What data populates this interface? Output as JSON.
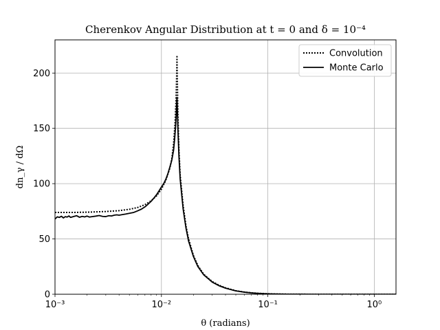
{
  "chart_data": {
    "type": "line",
    "title": "Cherenkov Angular Distribution at t = 0 and δ = 10⁻⁴",
    "xlabel": "θ (radians)",
    "ylabel": "dn_γ / dΩ",
    "xscale": "log",
    "xlim": [
      0.001,
      1.6
    ],
    "ylim": [
      0,
      230
    ],
    "xticks": [
      {
        "value": 0.001,
        "label": "10⁻³"
      },
      {
        "value": 0.01,
        "label": "10⁻²"
      },
      {
        "value": 0.1,
        "label": "10⁻¹"
      },
      {
        "value": 1,
        "label": "10⁰"
      }
    ],
    "yticks": [
      0,
      50,
      100,
      150,
      200
    ],
    "grid": true,
    "legend_position": "top-right",
    "series": [
      {
        "name": "Convolution",
        "style": "dotted",
        "color": "#000000",
        "x": [
          0.001,
          0.0015,
          0.002,
          0.003,
          0.004,
          0.005,
          0.006,
          0.007,
          0.008,
          0.009,
          0.01,
          0.011,
          0.012,
          0.0125,
          0.013,
          0.0134,
          0.0137,
          0.0139,
          0.014,
          0.0141,
          0.0143,
          0.0146,
          0.015,
          0.016,
          0.017,
          0.018,
          0.02,
          0.022,
          0.025,
          0.03,
          0.035,
          0.04,
          0.05,
          0.06,
          0.07,
          0.08,
          0.1,
          0.12,
          0.15,
          0.2,
          0.3,
          0.5,
          0.7,
          1.0,
          1.6
        ],
        "y": [
          74,
          74,
          74.2,
          74.8,
          75.6,
          76.8,
          78.5,
          81,
          84.5,
          89,
          95,
          103,
          114,
          122,
          136,
          154,
          175,
          198,
          216,
          196,
          162,
          132,
          108,
          80,
          62,
          50,
          35,
          26,
          18,
          11.5,
          8,
          5.8,
          3.2,
          2,
          1.3,
          0.9,
          0.45,
          0.25,
          0.12,
          0.05,
          0.01,
          0,
          0,
          0,
          0
        ]
      },
      {
        "name": "Monte Carlo",
        "style": "solid",
        "color": "#000000",
        "x": [
          0.001,
          0.00105,
          0.0011,
          0.00115,
          0.0012,
          0.00125,
          0.0013,
          0.00135,
          0.0014,
          0.0015,
          0.0016,
          0.0017,
          0.0018,
          0.0019,
          0.002,
          0.0021,
          0.0022,
          0.0024,
          0.0026,
          0.0028,
          0.003,
          0.0032,
          0.0034,
          0.0036,
          0.0038,
          0.004,
          0.0043,
          0.0046,
          0.005,
          0.0055,
          0.006,
          0.0065,
          0.007,
          0.0075,
          0.008,
          0.0085,
          0.009,
          0.0095,
          0.01,
          0.0105,
          0.011,
          0.0115,
          0.012,
          0.0125,
          0.013,
          0.0133,
          0.0136,
          0.0138,
          0.0139,
          0.014,
          0.0141,
          0.0143,
          0.0146,
          0.015,
          0.016,
          0.017,
          0.018,
          0.02,
          0.022,
          0.025,
          0.03,
          0.035,
          0.04,
          0.05,
          0.06,
          0.07,
          0.08,
          0.1,
          0.12,
          0.15,
          0.2,
          0.3,
          0.5,
          0.7,
          1.0,
          1.6
        ],
        "y": [
          68,
          70,
          69.5,
          70.5,
          69,
          70.2,
          69.8,
          70.8,
          69.5,
          70.3,
          71,
          69.6,
          70.4,
          69.9,
          70.7,
          69.8,
          70.1,
          70.6,
          71.2,
          70.4,
          70.2,
          71,
          70.8,
          71.5,
          71.8,
          71.5,
          72,
          72.5,
          73.2,
          74,
          75.5,
          77,
          79,
          81.5,
          84,
          87,
          90,
          93.5,
          97,
          100,
          104,
          109,
          115,
          121,
          130,
          140,
          152,
          163,
          172,
          178,
          168,
          148,
          125,
          104,
          77,
          60,
          48,
          34,
          25,
          17.5,
          11,
          7.6,
          5.5,
          3,
          1.9,
          1.2,
          0.8,
          0.4,
          0.22,
          0.1,
          0.04,
          0.01,
          0,
          0,
          0,
          0
        ]
      }
    ]
  }
}
